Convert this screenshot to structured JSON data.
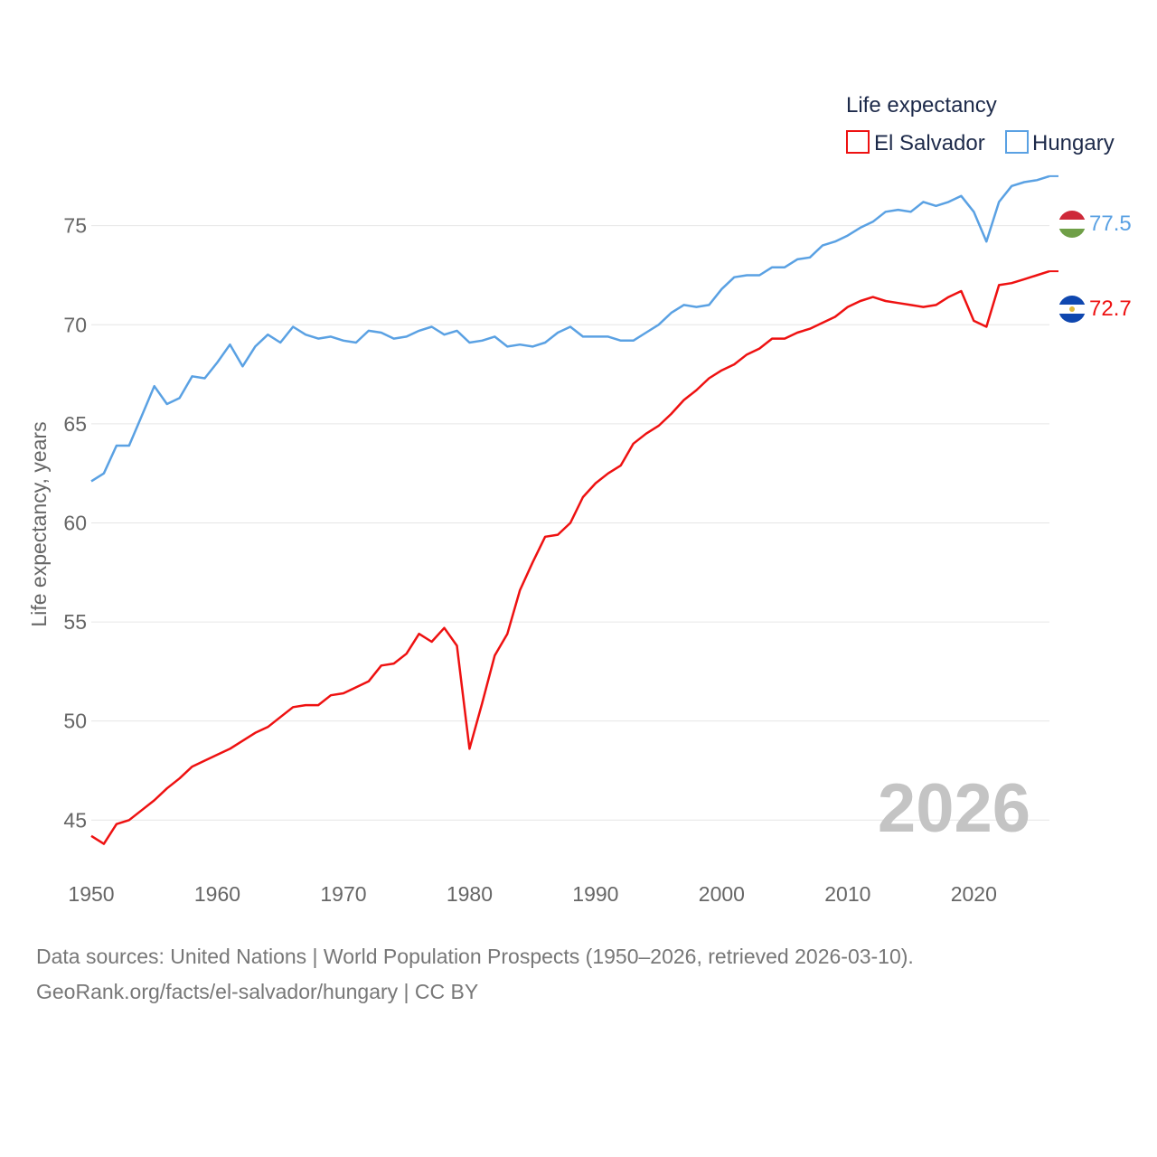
{
  "chart_data": {
    "type": "line",
    "title": "Life expectancy",
    "ylabel": "Life expectancy, years",
    "xlabel": "",
    "xlim": [
      1950,
      2026
    ],
    "ylim": [
      41.5,
      79
    ],
    "x_ticks": [
      1950,
      1960,
      1970,
      1980,
      1990,
      2000,
      2010,
      2020
    ],
    "y_ticks": [
      45,
      50,
      55,
      60,
      65,
      70,
      75
    ],
    "grid": true,
    "legend_position": "top-right",
    "year_label": "2026",
    "x": [
      1950,
      1951,
      1952,
      1953,
      1954,
      1955,
      1956,
      1957,
      1958,
      1959,
      1960,
      1961,
      1962,
      1963,
      1964,
      1965,
      1966,
      1967,
      1968,
      1969,
      1970,
      1971,
      1972,
      1973,
      1974,
      1975,
      1976,
      1977,
      1978,
      1979,
      1980,
      1981,
      1982,
      1983,
      1984,
      1985,
      1986,
      1987,
      1988,
      1989,
      1990,
      1991,
      1992,
      1993,
      1994,
      1995,
      1996,
      1997,
      1998,
      1999,
      2000,
      2001,
      2002,
      2003,
      2004,
      2005,
      2006,
      2007,
      2008,
      2009,
      2010,
      2011,
      2012,
      2013,
      2014,
      2015,
      2016,
      2017,
      2018,
      2019,
      2020,
      2021,
      2022,
      2023,
      2024,
      2025,
      2026
    ],
    "series": [
      {
        "name": "El Salvador",
        "color": "#ee1111",
        "end_label": "72.7",
        "values": [
          44.2,
          43.8,
          44.8,
          45.0,
          45.5,
          46.0,
          46.6,
          47.1,
          47.7,
          48.0,
          48.3,
          48.6,
          49.0,
          49.4,
          49.7,
          50.2,
          50.7,
          50.8,
          50.8,
          51.3,
          51.4,
          51.7,
          52.0,
          52.8,
          52.9,
          53.4,
          54.4,
          54.0,
          54.7,
          53.8,
          48.6,
          50.9,
          53.3,
          54.4,
          56.6,
          58.0,
          59.3,
          59.4,
          60.0,
          61.3,
          62.0,
          62.5,
          62.9,
          64.0,
          64.5,
          64.9,
          65.5,
          66.2,
          66.7,
          67.3,
          67.7,
          68.0,
          68.5,
          68.8,
          69.3,
          69.3,
          69.6,
          69.8,
          70.1,
          70.4,
          70.9,
          71.2,
          71.4,
          71.2,
          71.1,
          71.0,
          70.9,
          71.0,
          71.4,
          71.7,
          70.2,
          69.9,
          72.0,
          72.1,
          72.3,
          72.5,
          72.7
        ]
      },
      {
        "name": "Hungary",
        "color": "#5aa1e3",
        "end_label": "77.5",
        "values": [
          62.1,
          62.5,
          63.9,
          63.9,
          65.4,
          66.9,
          66.0,
          66.3,
          67.4,
          67.3,
          68.1,
          69.0,
          67.9,
          68.9,
          69.5,
          69.1,
          69.9,
          69.5,
          69.3,
          69.4,
          69.2,
          69.1,
          69.7,
          69.6,
          69.3,
          69.4,
          69.7,
          69.9,
          69.5,
          69.7,
          69.1,
          69.2,
          69.4,
          68.9,
          69.0,
          68.9,
          69.1,
          69.6,
          69.9,
          69.4,
          69.4,
          69.4,
          69.2,
          69.2,
          69.6,
          70.0,
          70.6,
          71.0,
          70.9,
          71.0,
          71.8,
          72.4,
          72.5,
          72.5,
          72.9,
          72.9,
          73.3,
          73.4,
          74.0,
          74.2,
          74.5,
          74.9,
          75.2,
          75.7,
          75.8,
          75.7,
          76.2,
          76.0,
          76.2,
          76.5,
          75.7,
          74.2,
          76.2,
          77.0,
          77.2,
          77.3,
          77.5
        ]
      }
    ]
  },
  "legend": {
    "title": "Life expectancy",
    "items": [
      {
        "label": "El Salvador",
        "color": "#ee1111"
      },
      {
        "label": "Hungary",
        "color": "#5aa1e3"
      }
    ]
  },
  "flags": {
    "hungary": {
      "icon": "hungary-flag-icon",
      "colors": [
        "#ce2939",
        "#ffffff",
        "#6f9f47"
      ]
    },
    "el_salvador": {
      "icon": "el-salvador-flag-icon",
      "colors": [
        "#0f47af",
        "#ffffff",
        "#0f47af"
      ],
      "emblem_color": "#e0b93a"
    }
  },
  "footer": {
    "line1": "Data sources: United Nations | World Population Prospects (1950–2026, retrieved 2026-03-10).",
    "line2": "GeoRank.org/facts/el-salvador/hungary | CC BY"
  }
}
